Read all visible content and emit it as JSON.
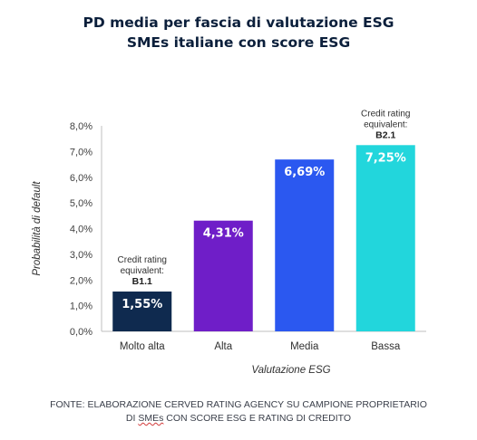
{
  "title_lines": [
    "PD media per fascia di valutazione ESG",
    "SMEs italiane con score ESG"
  ],
  "footer": {
    "line1": "FONTE: ELABORAZIONE CERVED RATING AGENCY SU CAMPIONE PROPRIETARIO",
    "line2_prefix": "DI ",
    "line2_underlined": "SMEs",
    "line2_suffix": " CON SCORE ESG E RATING DI CREDITO"
  },
  "chart_data": {
    "type": "bar",
    "xlabel": "Valutazione ESG",
    "ylabel": "Probabilità di default",
    "categories": [
      "Molto alta",
      "Alta",
      "Media",
      "Bassa"
    ],
    "values": [
      1.55,
      4.31,
      6.69,
      7.25
    ],
    "value_labels": [
      "1,55%",
      "4,31%",
      "6,69%",
      "7,25%"
    ],
    "ylim": [
      0,
      8
    ],
    "yticks": [
      "0,0%",
      "1,0%",
      "2,0%",
      "3,0%",
      "4,0%",
      "5,0%",
      "6,0%",
      "7,0%",
      "8,0%"
    ],
    "colors": [
      "#0f2a4f",
      "#6f1ec8",
      "#2b58f0",
      "#22d6dc"
    ],
    "grid": false,
    "annotations": [
      {
        "category": "Molto alta",
        "lines": [
          "Credit rating",
          "equivalent:"
        ],
        "rating": "B1.1"
      },
      {
        "category": "Bassa",
        "lines": [
          "Credit rating",
          "equivalent:"
        ],
        "rating": "B2.1"
      }
    ]
  }
}
